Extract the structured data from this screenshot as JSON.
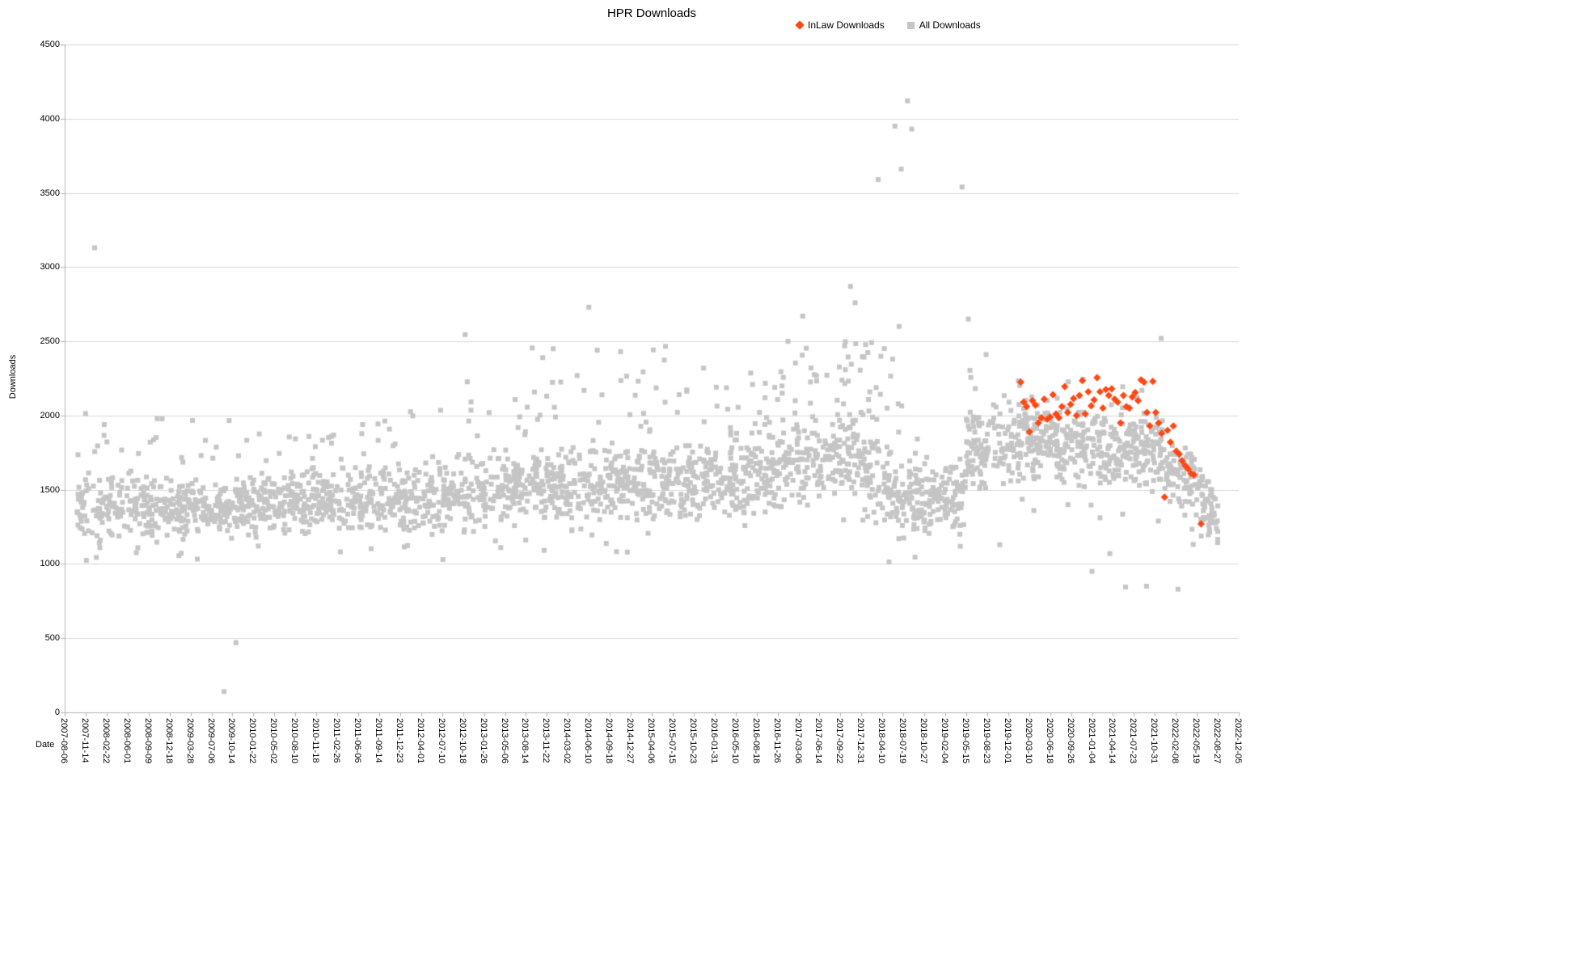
{
  "chart_data": {
    "type": "scatter",
    "title": "HPR Downloads",
    "xlabel": "Date",
    "ylabel": "Downloads",
    "ylim": [
      0,
      4500
    ],
    "y_ticks": [
      0,
      500,
      1000,
      1500,
      2000,
      2500,
      3000,
      3500,
      4000,
      4500
    ],
    "x_unit": "days since 2007-08-06",
    "x_range": [
      0,
      5600
    ],
    "x_tick_step_days": 100,
    "x_tick_labels": [
      "2007-08-06",
      "2007-11-14",
      "2008-02-22",
      "2008-06-01",
      "2008-09-09",
      "2008-12-18",
      "2009-03-28",
      "2009-07-06",
      "2009-10-14",
      "2010-01-22",
      "2010-05-02",
      "2010-08-10",
      "2010-11-18",
      "2011-02-26",
      "2011-06-06",
      "2011-09-14",
      "2011-12-23",
      "2012-04-01",
      "2012-07-10",
      "2012-10-18",
      "2013-01-26",
      "2013-05-06",
      "2013-08-14",
      "2013-11-22",
      "2014-03-02",
      "2014-06-10",
      "2014-09-18",
      "2014-12-27",
      "2015-04-06",
      "2015-07-15",
      "2015-10-23",
      "2016-01-31",
      "2016-05-10",
      "2016-08-18",
      "2016-11-26",
      "2017-03-06",
      "2017-06-14",
      "2017-09-22",
      "2017-12-31",
      "2018-04-10",
      "2018-07-19",
      "2018-10-27",
      "2019-02-04",
      "2019-05-15",
      "2019-08-23",
      "2019-12-01",
      "2020-03-10",
      "2020-06-18",
      "2020-09-26",
      "2021-01-04",
      "2021-04-14",
      "2021-07-23",
      "2021-10-31",
      "2022-02-08",
      "2022-05-19",
      "2022-08-27",
      "2022-12-05"
    ],
    "grid": "horizontal-only",
    "legend_position": "top-center",
    "colors": {
      "grid": "#d8d8d8",
      "axis": "#b0b0b0",
      "text": "#000000"
    },
    "seed": 77,
    "band_segment_fields": [
      "x0",
      "x1",
      "count",
      "center_start",
      "center_end",
      "spread",
      "tail_prob",
      "tail_max"
    ],
    "series": [
      {
        "name": "InLaw Downloads",
        "marker": "diamond",
        "color": "#ff4713",
        "points": [
          [
            4560,
            2225
          ],
          [
            4574,
            2090
          ],
          [
            4588,
            2060
          ],
          [
            4602,
            1890
          ],
          [
            4616,
            2100
          ],
          [
            4630,
            2070
          ],
          [
            4644,
            1950
          ],
          [
            4658,
            1985
          ],
          [
            4672,
            2110
          ],
          [
            4686,
            1975
          ],
          [
            4700,
            1990
          ],
          [
            4714,
            2140
          ],
          [
            4728,
            2010
          ],
          [
            4742,
            1985
          ],
          [
            4756,
            2060
          ],
          [
            4770,
            2195
          ],
          [
            4784,
            2020
          ],
          [
            4798,
            2075
          ],
          [
            4812,
            2115
          ],
          [
            4826,
            2000
          ],
          [
            4840,
            2135
          ],
          [
            4854,
            2235
          ],
          [
            4868,
            2010
          ],
          [
            4882,
            2160
          ],
          [
            4896,
            2065
          ],
          [
            4910,
            2105
          ],
          [
            4924,
            2255
          ],
          [
            4938,
            2160
          ],
          [
            4952,
            2050
          ],
          [
            4966,
            2175
          ],
          [
            4980,
            2135
          ],
          [
            4994,
            2180
          ],
          [
            5008,
            2110
          ],
          [
            5022,
            2090
          ],
          [
            5036,
            1950
          ],
          [
            5050,
            2135
          ],
          [
            5064,
            2060
          ],
          [
            5078,
            2050
          ],
          [
            5092,
            2125
          ],
          [
            5106,
            2155
          ],
          [
            5120,
            2100
          ],
          [
            5134,
            2240
          ],
          [
            5148,
            2225
          ],
          [
            5162,
            2020
          ],
          [
            5176,
            1930
          ],
          [
            5190,
            2230
          ],
          [
            5204,
            2020
          ],
          [
            5218,
            1950
          ],
          [
            5232,
            1880
          ],
          [
            5246,
            1450
          ],
          [
            5260,
            1900
          ],
          [
            5274,
            1820
          ],
          [
            5288,
            1930
          ],
          [
            5302,
            1760
          ],
          [
            5316,
            1740
          ],
          [
            5330,
            1695
          ],
          [
            5344,
            1665
          ],
          [
            5358,
            1640
          ],
          [
            5372,
            1610
          ],
          [
            5386,
            1600
          ],
          [
            5420,
            1270
          ]
        ]
      },
      {
        "name": "All Downloads",
        "marker": "square",
        "color": "#c5c5c5",
        "band_segments": [
          [
            60,
            400,
            150,
            1400,
            1380,
            150,
            0.08,
            2050
          ],
          [
            400,
            900,
            260,
            1370,
            1380,
            140,
            0.06,
            1980
          ],
          [
            900,
            1400,
            260,
            1400,
            1430,
            150,
            0.06,
            1900
          ],
          [
            1400,
            1900,
            260,
            1420,
            1450,
            160,
            0.07,
            2100
          ],
          [
            1900,
            2400,
            270,
            1470,
            1520,
            170,
            0.09,
            2250
          ],
          [
            2400,
            2900,
            270,
            1520,
            1560,
            180,
            0.1,
            2480
          ],
          [
            2900,
            3400,
            270,
            1550,
            1600,
            190,
            0.1,
            2380
          ],
          [
            3400,
            3800,
            220,
            1650,
            1750,
            200,
            0.12,
            2520
          ],
          [
            3800,
            4000,
            120,
            1600,
            1450,
            200,
            0.18,
            2500
          ],
          [
            4000,
            4300,
            160,
            1380,
            1500,
            160,
            0.05,
            1900
          ],
          [
            4300,
            4600,
            170,
            1750,
            1850,
            200,
            0.08,
            2420
          ],
          [
            4600,
            4900,
            170,
            1800,
            1780,
            180,
            0.06,
            2300
          ],
          [
            4900,
            5250,
            200,
            1780,
            1750,
            180,
            0.05,
            2200
          ],
          [
            5250,
            5420,
            90,
            1650,
            1500,
            160,
            0.04,
            2000
          ],
          [
            5420,
            5500,
            50,
            1450,
            1300,
            110,
            0.02,
            1700
          ]
        ],
        "outliers": [
          [
            143,
            3130
          ],
          [
            760,
            140
          ],
          [
            817,
            470
          ],
          [
            1620,
            1115
          ],
          [
            1910,
            2545
          ],
          [
            2080,
            1110
          ],
          [
            2230,
            2455
          ],
          [
            2280,
            2390
          ],
          [
            2330,
            2450
          ],
          [
            2500,
            2730
          ],
          [
            2540,
            2440
          ],
          [
            3450,
            2500
          ],
          [
            3520,
            2670
          ],
          [
            3748,
            2870
          ],
          [
            3770,
            2760
          ],
          [
            3880,
            3590
          ],
          [
            3960,
            3950
          ],
          [
            3990,
            3660
          ],
          [
            4020,
            4120
          ],
          [
            4040,
            3930
          ],
          [
            3980,
            2600
          ],
          [
            4280,
            3540
          ],
          [
            4310,
            2650
          ],
          [
            4460,
            1130
          ],
          [
            4900,
            950
          ],
          [
            4985,
            1070
          ],
          [
            5060,
            845
          ],
          [
            5160,
            850
          ],
          [
            5230,
            2520
          ],
          [
            5310,
            830
          ]
        ]
      }
    ]
  }
}
